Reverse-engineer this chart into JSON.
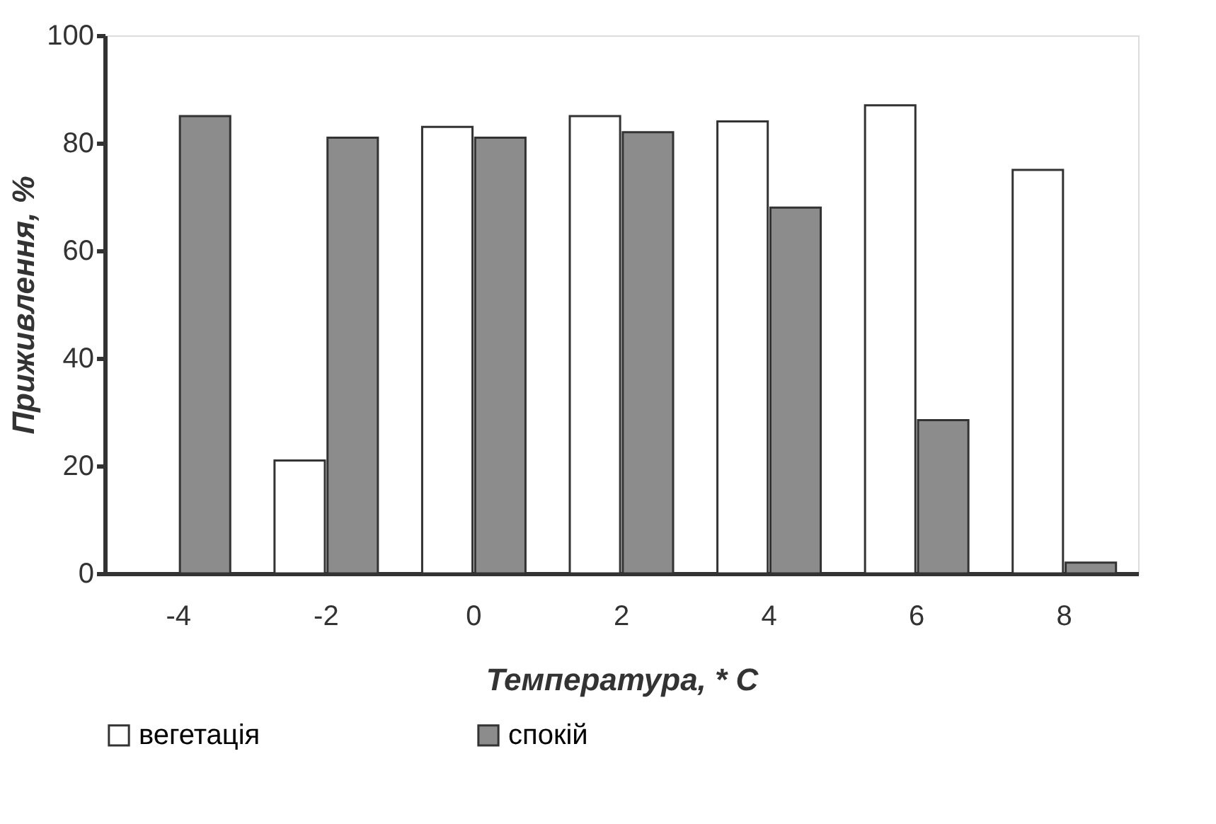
{
  "chart_data": {
    "type": "bar",
    "xlabel": "Температура, * С",
    "ylabel": "Приживлення, %",
    "categories": [
      "-4",
      "-2",
      "0",
      "2",
      "4",
      "6",
      "8"
    ],
    "series": [
      {
        "name": "вегетація",
        "color": "#ffffff",
        "values": [
          null,
          21,
          83,
          85,
          84,
          87,
          75
        ]
      },
      {
        "name": "спокій",
        "color": "#8c8c8c",
        "values": [
          85,
          81,
          81,
          82,
          68,
          28.5,
          2
        ]
      }
    ],
    "ylim": [
      0,
      100
    ],
    "yticks": [
      0,
      20,
      40,
      60,
      80,
      100
    ],
    "grid": false,
    "legend": "bottom"
  }
}
